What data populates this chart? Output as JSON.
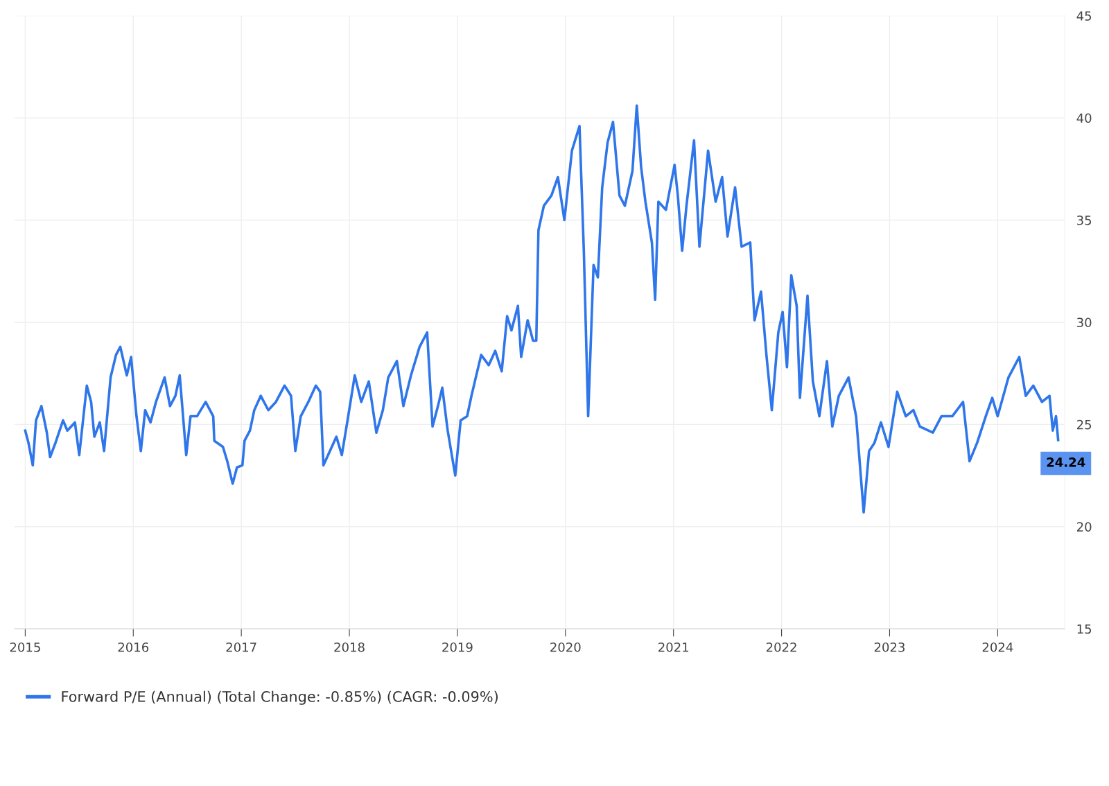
{
  "chart_data": {
    "type": "line",
    "x": [
      2015.0,
      2015.03,
      2015.07,
      2015.1,
      2015.15,
      2015.2,
      2015.23,
      2015.28,
      2015.35,
      2015.39,
      2015.46,
      2015.5,
      2015.57,
      2015.61,
      2015.64,
      2015.69,
      2015.73,
      2015.79,
      2015.84,
      2015.88,
      2015.94,
      2015.98,
      2016.03,
      2016.07,
      2016.11,
      2016.16,
      2016.21,
      2016.29,
      2016.34,
      2016.39,
      2016.43,
      2016.49,
      2016.53,
      2016.59,
      2016.67,
      2016.74,
      2016.75,
      2016.83,
      2016.87,
      2016.92,
      2016.96,
      2017.01,
      2017.03,
      2017.08,
      2017.12,
      2017.18,
      2017.25,
      2017.32,
      2017.4,
      2017.46,
      2017.5,
      2017.55,
      2017.62,
      2017.69,
      2017.73,
      2017.76,
      2017.82,
      2017.88,
      2017.93,
      2017.98,
      2018.05,
      2018.11,
      2018.18,
      2018.25,
      2018.31,
      2018.36,
      2018.44,
      2018.5,
      2018.57,
      2018.65,
      2018.72,
      2018.77,
      2018.82,
      2018.86,
      2018.91,
      2018.98,
      2019.03,
      2019.09,
      2019.13,
      2019.17,
      2019.22,
      2019.29,
      2019.35,
      2019.41,
      2019.46,
      2019.5,
      2019.56,
      2019.59,
      2019.65,
      2019.7,
      2019.73,
      2019.75,
      2019.8,
      2019.87,
      2019.93,
      2019.99,
      2020.06,
      2020.13,
      2020.17,
      2020.21,
      2020.26,
      2020.3,
      2020.34,
      2020.39,
      2020.44,
      2020.5,
      2020.55,
      2020.62,
      2020.66,
      2020.7,
      2020.74,
      2020.8,
      2020.83,
      2020.86,
      2020.93,
      2021.01,
      2021.04,
      2021.08,
      2021.12,
      2021.19,
      2021.24,
      2021.32,
      2021.39,
      2021.45,
      2021.5,
      2021.57,
      2021.63,
      2021.71,
      2021.75,
      2021.81,
      2021.86,
      2021.91,
      2021.97,
      2022.01,
      2022.05,
      2022.09,
      2022.14,
      2022.17,
      2022.24,
      2022.29,
      2022.35,
      2022.42,
      2022.47,
      2022.53,
      2022.62,
      2022.69,
      2022.73,
      2022.76,
      2022.81,
      2022.86,
      2022.92,
      2022.99,
      2023.07,
      2023.15,
      2023.22,
      2023.28,
      2023.4,
      2023.48,
      2023.58,
      2023.68,
      2023.74,
      2023.81,
      2023.89,
      2023.95,
      2024.0,
      2024.1,
      2024.15,
      2024.2,
      2024.26,
      2024.33,
      2024.41,
      2024.48,
      2024.51,
      2024.54,
      2024.56
    ],
    "series": [
      {
        "name": "Forward P/E (Annual) (Total Change: -0.85%) (CAGR: -0.09%)",
        "color": "#2f76eb",
        "values": [
          24.7,
          24.1,
          23.0,
          25.2,
          25.9,
          24.6,
          23.4,
          24.1,
          25.2,
          24.7,
          25.1,
          23.5,
          26.9,
          26.1,
          24.4,
          25.1,
          23.7,
          27.3,
          28.4,
          28.8,
          27.4,
          28.3,
          25.4,
          23.7,
          25.7,
          25.1,
          26.1,
          27.3,
          25.9,
          26.4,
          27.4,
          23.5,
          25.4,
          25.4,
          26.1,
          25.4,
          24.2,
          23.9,
          23.2,
          22.1,
          22.9,
          23.0,
          24.2,
          24.7,
          25.7,
          26.4,
          25.7,
          26.1,
          26.9,
          26.4,
          23.7,
          25.4,
          26.1,
          26.9,
          26.6,
          23.0,
          23.7,
          24.4,
          23.5,
          25.1,
          27.4,
          26.1,
          27.1,
          24.6,
          25.7,
          27.3,
          28.1,
          25.9,
          27.4,
          28.8,
          29.5,
          24.9,
          25.9,
          26.8,
          24.7,
          22.5,
          25.2,
          25.4,
          26.4,
          27.3,
          28.4,
          27.9,
          28.6,
          27.6,
          30.3,
          29.6,
          30.8,
          28.3,
          30.1,
          29.1,
          29.1,
          34.5,
          35.7,
          36.2,
          37.1,
          35.0,
          38.4,
          39.6,
          33.5,
          25.4,
          32.8,
          32.2,
          36.6,
          38.8,
          39.8,
          36.2,
          35.7,
          37.4,
          40.6,
          37.6,
          35.9,
          33.9,
          31.1,
          35.9,
          35.5,
          37.7,
          36.2,
          33.5,
          35.7,
          38.9,
          33.7,
          38.4,
          35.9,
          37.1,
          34.2,
          36.6,
          33.7,
          33.9,
          30.1,
          31.5,
          28.4,
          25.7,
          29.5,
          30.5,
          27.8,
          32.3,
          30.8,
          26.3,
          31.3,
          27.1,
          25.4,
          28.1,
          24.9,
          26.4,
          27.3,
          25.4,
          22.7,
          20.7,
          23.7,
          24.1,
          25.1,
          23.9,
          26.6,
          25.4,
          25.7,
          24.9,
          24.6,
          25.4,
          25.4,
          26.1,
          23.2,
          24.1,
          25.4,
          26.3,
          25.4,
          27.3,
          27.8,
          28.3,
          26.4,
          26.9,
          26.1,
          26.4,
          24.7,
          25.4,
          24.24
        ]
      }
    ],
    "annotations": [
      {
        "text": "24.24",
        "x": 2024.56,
        "y": 24.24
      }
    ],
    "xlim": [
      2014.9,
      2024.62
    ],
    "xticks": [
      2015,
      2016,
      2017,
      2018,
      2019,
      2020,
      2021,
      2022,
      2023,
      2024
    ],
    "ylim": [
      15,
      45
    ],
    "yticks": [
      15,
      20,
      25,
      30,
      35,
      40,
      45
    ],
    "grid": true,
    "legend": "bottom",
    "line_style": "solid"
  }
}
